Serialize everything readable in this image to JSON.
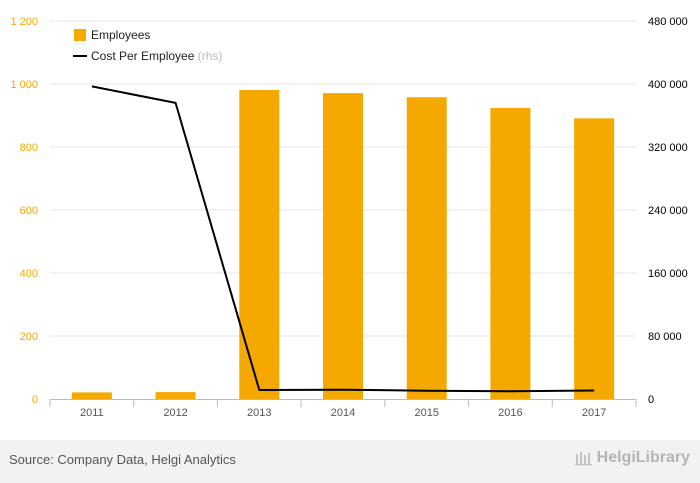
{
  "chart_data": {
    "type": "bar",
    "categories": [
      "2011",
      "2012",
      "2013",
      "2014",
      "2015",
      "2016",
      "2017"
    ],
    "series": [
      {
        "name": "Employees",
        "type": "bar",
        "axis": "left",
        "color": "#f5a800",
        "values": [
          21,
          22,
          981,
          971,
          958,
          924,
          891
        ]
      },
      {
        "name": "Cost Per Employee",
        "legend_suffix": "(rhs)",
        "type": "line",
        "axis": "right",
        "color": "#000000",
        "values": [
          397000,
          376000,
          11500,
          11800,
          10500,
          9900,
          10800
        ]
      }
    ],
    "y_left": {
      "min": 0,
      "max": 1200,
      "ticks": [
        0,
        200,
        400,
        600,
        800,
        1000,
        1200
      ],
      "tick_labels": [
        "0",
        "200",
        "400",
        "600",
        "800",
        "1 000",
        "1 200"
      ],
      "label_color": "#f5a800"
    },
    "y_right": {
      "min": 0,
      "max": 480000,
      "ticks": [
        0,
        80000,
        160000,
        240000,
        320000,
        400000,
        480000
      ],
      "tick_labels": [
        "0",
        "80 000",
        "160 000",
        "240 000",
        "320 000",
        "400 000",
        "480 000"
      ],
      "label_color": "#000000"
    },
    "grid": true,
    "legend_position": "top-left"
  },
  "footer": {
    "source": "Source: Company Data, Helgi Analytics",
    "brand": "HelgiLibrary"
  }
}
